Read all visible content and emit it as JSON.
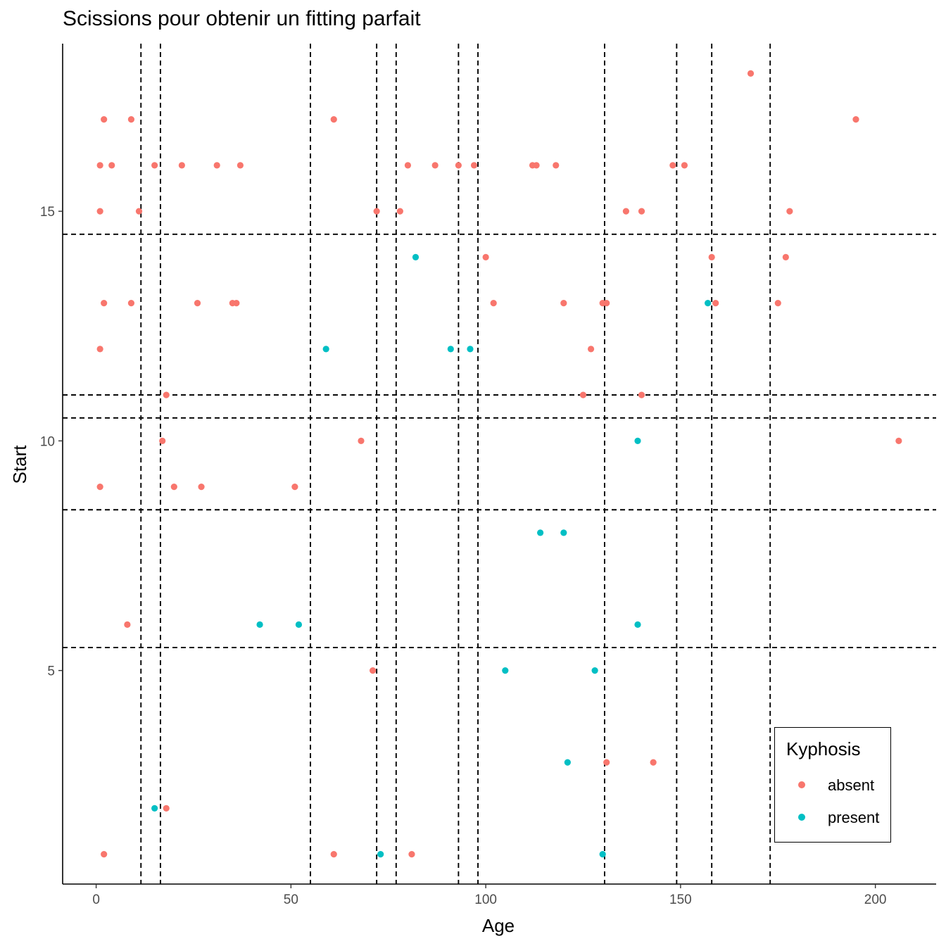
{
  "title": "Scissions pour obtenir un fitting parfait",
  "colors": {
    "absent": "#F8766D",
    "present": "#00BFC4"
  },
  "chart_data": {
    "type": "scatter",
    "title": "Scissions pour obtenir un fitting parfait",
    "xlabel": "Age",
    "ylabel": "Start",
    "xlim": [
      -8.6,
      215.6
    ],
    "ylim": [
      0.35,
      18.65
    ],
    "xticks": [
      0,
      50,
      100,
      150,
      200
    ],
    "yticks": [
      5,
      10,
      15
    ],
    "grid": false,
    "legend": {
      "title": "Kyphosis",
      "position": "bottom-right",
      "entries": [
        "absent",
        "present"
      ]
    },
    "split_lines": {
      "age": [
        11.5,
        16.5,
        55,
        72,
        77,
        93,
        98,
        130.5,
        149,
        158,
        173
      ],
      "start": [
        5.5,
        8.5,
        10.5,
        11,
        14.5
      ]
    },
    "series": [
      {
        "name": "absent",
        "points": [
          [
            2,
            17
          ],
          [
            9,
            17
          ],
          [
            61,
            17
          ],
          [
            195,
            17
          ],
          [
            168,
            18
          ],
          [
            1,
            16
          ],
          [
            4,
            16
          ],
          [
            15,
            16
          ],
          [
            22,
            16
          ],
          [
            31,
            16
          ],
          [
            37,
            16
          ],
          [
            80,
            16
          ],
          [
            87,
            16
          ],
          [
            93,
            16
          ],
          [
            97,
            16
          ],
          [
            112,
            16
          ],
          [
            113,
            16
          ],
          [
            118,
            16
          ],
          [
            148,
            16
          ],
          [
            151,
            16
          ],
          [
            1,
            15
          ],
          [
            11,
            15
          ],
          [
            72,
            15
          ],
          [
            78,
            15
          ],
          [
            136,
            15
          ],
          [
            140,
            15
          ],
          [
            178,
            15
          ],
          [
            100,
            14
          ],
          [
            158,
            14
          ],
          [
            177,
            14
          ],
          [
            2,
            13
          ],
          [
            9,
            13
          ],
          [
            26,
            13
          ],
          [
            35,
            13
          ],
          [
            36,
            13
          ],
          [
            102,
            13
          ],
          [
            120,
            13
          ],
          [
            130,
            13
          ],
          [
            131,
            13
          ],
          [
            159,
            13
          ],
          [
            175,
            13
          ],
          [
            1,
            12
          ],
          [
            127,
            12
          ],
          [
            18,
            11
          ],
          [
            125,
            11
          ],
          [
            140,
            11
          ],
          [
            17,
            10
          ],
          [
            68,
            10
          ],
          [
            206,
            10
          ],
          [
            1,
            9
          ],
          [
            20,
            9
          ],
          [
            27,
            9
          ],
          [
            51,
            9
          ],
          [
            8,
            6
          ],
          [
            71,
            5
          ],
          [
            131,
            3
          ],
          [
            143,
            3
          ],
          [
            18,
            2
          ],
          [
            2,
            1
          ],
          [
            61,
            1
          ],
          [
            81,
            1
          ]
        ]
      },
      {
        "name": "present",
        "points": [
          [
            82,
            14
          ],
          [
            157,
            13
          ],
          [
            59,
            12
          ],
          [
            91,
            12
          ],
          [
            96,
            12
          ],
          [
            139,
            10
          ],
          [
            114,
            8
          ],
          [
            120,
            8
          ],
          [
            42,
            6
          ],
          [
            52,
            6
          ],
          [
            139,
            6
          ],
          [
            105,
            5
          ],
          [
            128,
            5
          ],
          [
            121,
            3
          ],
          [
            15,
            2
          ],
          [
            73,
            1
          ],
          [
            130,
            1
          ]
        ]
      }
    ]
  }
}
